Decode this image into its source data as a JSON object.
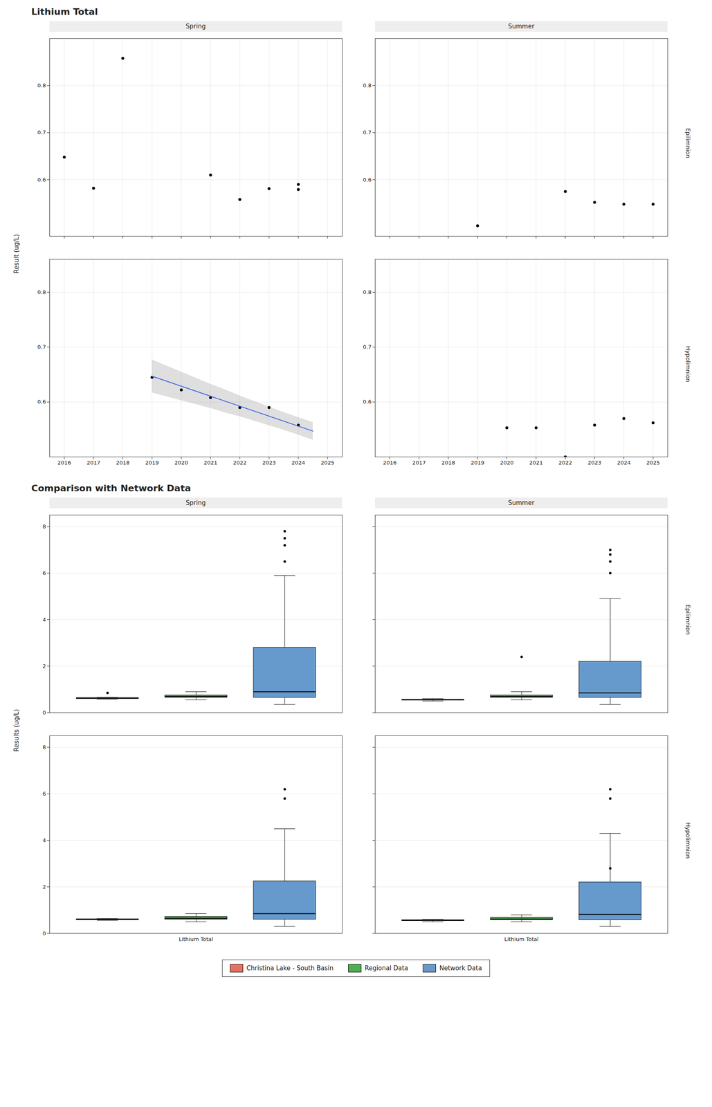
{
  "chart_data": [
    {
      "type": "scatter",
      "title": "Lithium Total",
      "ylabel": "Result (ug/L)",
      "columns": [
        "Spring",
        "Summer"
      ],
      "rows": [
        "Epilimnion",
        "Hypolimnion"
      ],
      "xlim": [
        2015.5,
        2025.5
      ],
      "xticks": [
        2016,
        2017,
        2018,
        2019,
        2020,
        2021,
        2022,
        2023,
        2024,
        2025
      ],
      "grid": true,
      "panels": [
        {
          "column": "Spring",
          "row": "Epilimnion",
          "tick_labels": "y",
          "ylim": [
            0.48,
            0.9
          ],
          "yticks": [
            0.6,
            0.7,
            0.8
          ],
          "series": [
            {
              "type": "scatter",
              "color": "black",
              "x": [
                2016,
                2017,
                2018,
                2021,
                2022,
                2023,
                2024,
                2024
              ],
              "values": [
                0.648,
                0.582,
                0.858,
                0.61,
                0.558,
                0.581,
                0.59,
                0.579
              ]
            }
          ]
        },
        {
          "column": "Summer",
          "row": "Epilimnion",
          "tick_labels": "y",
          "ylim": [
            0.48,
            0.9
          ],
          "yticks": [
            0.6,
            0.7,
            0.8
          ],
          "series": [
            {
              "type": "scatter",
              "color": "black",
              "x": [
                2019,
                2022,
                2023,
                2024,
                2025
              ],
              "values": [
                0.502,
                0.575,
                0.552,
                0.548,
                0.548
              ]
            }
          ]
        },
        {
          "column": "Spring",
          "row": "Hypolimnion",
          "ylim": [
            0.5,
            0.86
          ],
          "yticks": [
            0.6,
            0.7,
            0.8
          ],
          "series": [
            {
              "type": "scatter",
              "color": "black",
              "x": [
                2019,
                2020,
                2021,
                2022,
                2023,
                2024
              ],
              "values": [
                0.645,
                0.622,
                0.608,
                0.59,
                0.59,
                0.558
              ]
            },
            {
              "type": "line",
              "color": "#4169E1",
              "x": [
                2019,
                2024.5
              ],
              "values": [
                0.647,
                0.547
              ]
            },
            {
              "type": "area",
              "color": "gray",
              "x": [
                2019,
                2019.5,
                2020,
                2020.5,
                2021,
                2021.5,
                2022,
                2022.5,
                2023,
                2023.5,
                2024,
                2024.5
              ],
              "lower": [
                0.617,
                0.60990909,
                0.60281818,
                0.59572727,
                0.58863636,
                0.58054545,
                0.57345455,
                0.56536364,
                0.55727273,
                0.54918182,
                0.54009091,
                0.531
              ],
              "upper": [
                0.677,
                0.66590909,
                0.65481818,
                0.64372727,
                0.63263636,
                0.62254545,
                0.61145455,
                0.60136364,
                0.59127273,
                0.58118182,
                0.57209091,
                0.563
              ]
            }
          ]
        },
        {
          "column": "Summer",
          "row": "Hypolimnion",
          "ylim": [
            0.5,
            0.86
          ],
          "yticks": [
            0.6,
            0.7,
            0.8
          ],
          "series": [
            {
              "type": "scatter",
              "color": "black",
              "x": [
                2020,
                2021,
                2022,
                2023,
                2024,
                2025
              ],
              "values": [
                0.553,
                0.553,
                0.5,
                0.558,
                0.57,
                0.562
              ]
            }
          ]
        }
      ]
    },
    {
      "type": "box",
      "title": "Comparison with Network Data",
      "ylabel": "Results (ug/L)",
      "columns": [
        "Spring",
        "Summer"
      ],
      "rows": [
        "Epilimnion",
        "Hypolimnion"
      ],
      "categories": [
        "Lithium Total"
      ],
      "ylim": [
        0,
        8.5
      ],
      "yticks": [
        0,
        2,
        4,
        6,
        8
      ],
      "grid": "y",
      "legend": "bottom",
      "series": [
        {
          "name": "Christina Lake - South Basin",
          "color": "#E87060"
        },
        {
          "name": "Regional Data",
          "color": "#4CAF50"
        },
        {
          "name": "Network Data",
          "color": "#6699CC"
        }
      ],
      "panels": [
        {
          "column": "Spring",
          "row": "Epilimnion",
          "tick_labels": "y",
          "boxes": [
            {
              "median": 0.62,
              "q1": 0.6,
              "q3": 0.64,
              "whisker_low": 0.58,
              "whisker_high": 0.66,
              "outliers": [
                0.85
              ]
            },
            {
              "median": 0.7,
              "q1": 0.65,
              "q3": 0.75,
              "whisker_low": 0.55,
              "whisker_high": 0.9,
              "outliers": []
            },
            {
              "median": 0.9,
              "q1": 0.65,
              "q3": 2.8,
              "whisker_low": 0.35,
              "whisker_high": 5.9,
              "outliers": [
                6.5,
                7.2,
                7.5,
                7.8
              ]
            }
          ]
        },
        {
          "column": "Summer",
          "row": "Epilimnion",
          "tick_labels": false,
          "boxes": [
            {
              "median": 0.55,
              "q1": 0.54,
              "q3": 0.57,
              "whisker_low": 0.5,
              "whisker_high": 0.6,
              "outliers": []
            },
            {
              "median": 0.7,
              "q1": 0.65,
              "q3": 0.75,
              "whisker_low": 0.55,
              "whisker_high": 0.9,
              "outliers": [
                2.4
              ]
            },
            {
              "median": 0.85,
              "q1": 0.65,
              "q3": 2.2,
              "whisker_low": 0.35,
              "whisker_high": 4.9,
              "outliers": [
                6.0,
                6.5,
                6.8,
                7.0
              ]
            }
          ]
        },
        {
          "column": "Spring",
          "row": "Hypolimnion",
          "boxes": [
            {
              "median": 0.6,
              "q1": 0.58,
              "q3": 0.62,
              "whisker_low": 0.56,
              "whisker_high": 0.64,
              "outliers": []
            },
            {
              "median": 0.65,
              "q1": 0.6,
              "q3": 0.72,
              "whisker_low": 0.5,
              "whisker_high": 0.85,
              "outliers": []
            },
            {
              "median": 0.85,
              "q1": 0.6,
              "q3": 2.25,
              "whisker_low": 0.3,
              "whisker_high": 4.5,
              "outliers": [
                5.8,
                6.2
              ]
            }
          ]
        },
        {
          "column": "Summer",
          "row": "Hypolimnion",
          "tick_labels": "x",
          "boxes": [
            {
              "median": 0.56,
              "q1": 0.54,
              "q3": 0.58,
              "whisker_low": 0.5,
              "whisker_high": 0.6,
              "outliers": []
            },
            {
              "median": 0.62,
              "q1": 0.58,
              "q3": 0.68,
              "whisker_low": 0.5,
              "whisker_high": 0.8,
              "outliers": []
            },
            {
              "median": 0.82,
              "q1": 0.58,
              "q3": 2.2,
              "whisker_low": 0.3,
              "whisker_high": 4.3,
              "outliers": [
                2.8,
                5.8,
                6.2
              ]
            }
          ]
        }
      ]
    }
  ]
}
